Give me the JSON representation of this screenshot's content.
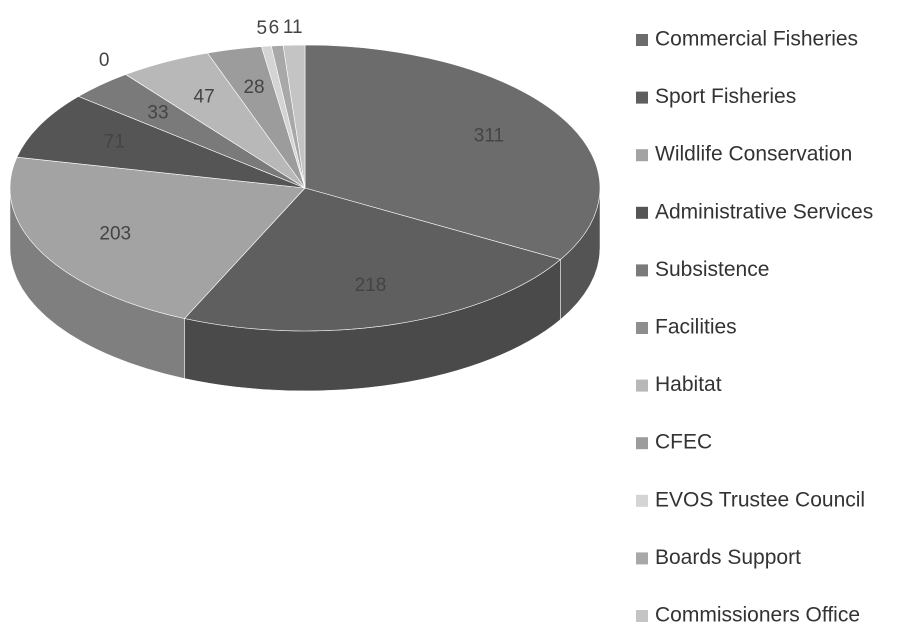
{
  "chart_data": {
    "type": "pie",
    "categories": [
      "Commercial Fisheries",
      "Sport Fisheries",
      "Wildlife Conservation",
      "Administrative Services",
      "Subsistence",
      "Facilities",
      "Habitat",
      "CFEC",
      "EVOS Trustee Council",
      "Boards Support",
      "Commissioners Office"
    ],
    "values": [
      311,
      218,
      203,
      71,
      33,
      0,
      47,
      28,
      5,
      6,
      11
    ],
    "colors": [
      "#6c6c6c",
      "#5f5f5f",
      "#a3a3a3",
      "#555555",
      "#7a7a7a",
      "#8e8e8e",
      "#b8b8b8",
      "#9c9c9c",
      "#d4d4d4",
      "#a8a8a8",
      "#c4c4c4"
    ],
    "legend": "right"
  }
}
